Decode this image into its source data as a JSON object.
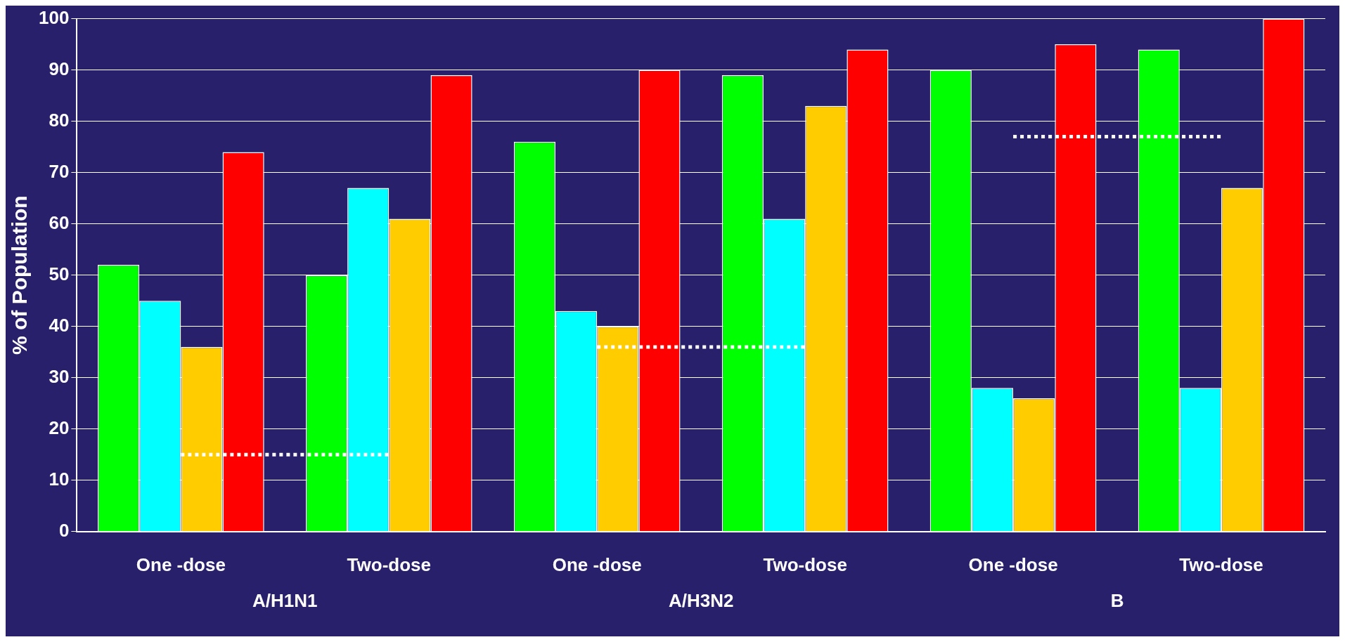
{
  "chart_data": {
    "type": "bar",
    "ylabel": "% of Population",
    "categories": [
      "One -dose",
      "Two-dose",
      "One -dose",
      "Two-dose",
      "One -dose",
      "Two-dose"
    ],
    "series": [
      {
        "color": "#00ff00",
        "values": [
          52,
          50,
          76,
          89,
          90,
          94
        ]
      },
      {
        "color": "#00ffff",
        "values": [
          45,
          67,
          43,
          61,
          28,
          28
        ]
      },
      {
        "color": "#ffcc00",
        "values": [
          36,
          61,
          40,
          83,
          26,
          67
        ]
      },
      {
        "color": "#ff0000",
        "values": [
          74,
          89,
          90,
          94,
          95,
          100
        ]
      },
      {
        "type": "line",
        "color": "#ffffff",
        "line_style": "dotted",
        "marker": "none",
        "values": [
          15,
          15,
          null,
          null,
          null,
          null
        ]
      },
      {
        "type": "line",
        "color": "#ffffff",
        "line_style": "dotted",
        "marker": "none",
        "values": [
          null,
          null,
          36,
          36,
          null,
          null
        ]
      },
      {
        "type": "line",
        "color": "#ffffff",
        "line_style": "dotted",
        "marker": "none",
        "values": [
          null,
          null,
          null,
          null,
          77,
          77
        ]
      }
    ],
    "annotations": [
      "A/H1N1",
      "A/H3N2",
      "B"
    ],
    "ylim": [
      0,
      100
    ],
    "yticks": [
      0,
      10,
      20,
      30,
      40,
      50,
      60,
      70,
      80,
      90,
      100
    ],
    "grid": "y",
    "legend": false
  }
}
